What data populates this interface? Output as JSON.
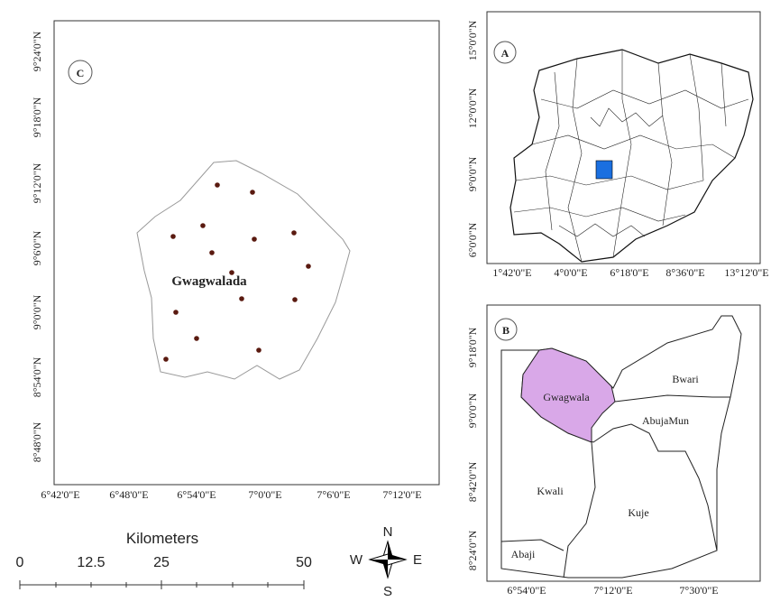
{
  "panel_c": {
    "label": "C",
    "lat_ticks": [
      "9°24'0\"N",
      "9°18'0\"N",
      "9°12'0\"N",
      "9°6'0\"N",
      "9°0'0\"N",
      "8°54'0\"N",
      "8°48'0\"N"
    ],
    "lon_ticks": [
      "6°42'0\"E",
      "6°48'0\"E",
      "6°54'0\"E",
      "7°0'0\"E",
      "7°6'0\"E",
      "7°12'0\"E"
    ],
    "area_label": "Gwagwalada"
  },
  "scale_bar": {
    "title": "Kilometers",
    "labels": [
      "0",
      "12.5",
      "25",
      "50"
    ]
  },
  "compass": {
    "n": "N",
    "s": "S",
    "w": "W",
    "e": "E"
  },
  "panel_a": {
    "label": "A",
    "lat_ticks": [
      "15°0'0\"N",
      "12°0'0\"N",
      "9°0'0\"N",
      "6°0'0\"N"
    ],
    "lon_ticks": [
      "1°42'0\"E",
      "4°0'0\"E",
      "6°18'0\"E",
      "8°36'0\"E",
      "13°12'0\"E"
    ]
  },
  "panel_b": {
    "label": "B",
    "lat_ticks": [
      "9°18'0\"N",
      "9°0'0\"N",
      "8°42'0\"N",
      "8°24'0\"N"
    ],
    "lon_ticks": [
      "6°54'0\"E",
      "7°12'0\"E",
      "7°30'0\"E"
    ],
    "areas": [
      "Bwari",
      "Gwagwala",
      "AbujaMun",
      "Kwali",
      "Kuje",
      "Abaji"
    ]
  }
}
